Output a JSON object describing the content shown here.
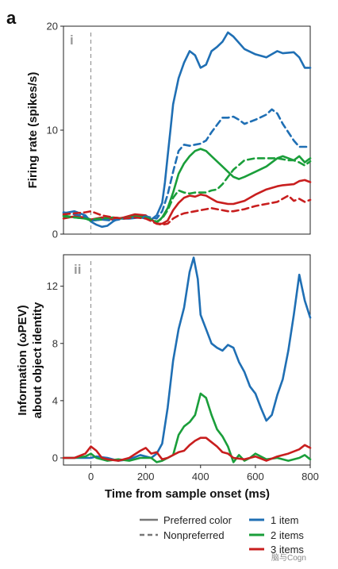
{
  "figure": {
    "letter": "a",
    "watermark": "脑与Cogn"
  },
  "colors": {
    "one_item": "#1f6fb4",
    "two_items": "#1a9e3a",
    "three_items": "#c81e1e",
    "grey": "#777777"
  },
  "legend": {
    "preferred": "Preferred color",
    "nonpreferred": "Nonpreferred",
    "one": "1 item",
    "two": "2 items",
    "three": "3 items"
  },
  "chart_data": [
    {
      "type": "line",
      "panel_label": "i",
      "ylabel": "Firing rate (spikes/s)",
      "xlim": [
        -100,
        800
      ],
      "ylim": [
        0,
        20
      ],
      "yticks": [
        0,
        10,
        20
      ],
      "event_marker_x": 0,
      "series": [
        {
          "name": "1 item",
          "line": "solid",
          "color": "one_item",
          "x": [
            -100,
            -60,
            -20,
            0,
            20,
            40,
            60,
            80,
            100,
            140,
            180,
            220,
            240,
            260,
            270,
            280,
            290,
            300,
            320,
            340,
            360,
            380,
            400,
            420,
            440,
            460,
            480,
            500,
            520,
            560,
            600,
            640,
            680,
            700,
            740,
            760,
            780,
            800
          ],
          "y": [
            2.0,
            2.2,
            1.8,
            1.2,
            0.9,
            0.7,
            0.8,
            1.2,
            1.5,
            1.5,
            1.6,
            1.4,
            1.8,
            3.0,
            5.0,
            7.5,
            10.0,
            12.5,
            15.0,
            16.5,
            17.6,
            17.2,
            16.0,
            16.3,
            17.6,
            18.0,
            18.5,
            19.4,
            19.0,
            17.8,
            17.3,
            17.0,
            17.6,
            17.4,
            17.5,
            17.0,
            16.0,
            16.0
          ]
        },
        {
          "name": "2 items",
          "line": "solid",
          "color": "two_items",
          "x": [
            -100,
            -60,
            -20,
            0,
            40,
            80,
            120,
            160,
            200,
            240,
            260,
            280,
            300,
            320,
            340,
            360,
            380,
            400,
            420,
            440,
            460,
            480,
            500,
            520,
            540,
            560,
            600,
            640,
            680,
            700,
            740,
            760,
            780,
            800
          ],
          "y": [
            1.8,
            1.6,
            1.5,
            1.3,
            1.4,
            1.6,
            1.5,
            1.8,
            1.7,
            1.1,
            1.6,
            2.5,
            4.0,
            5.8,
            6.8,
            7.5,
            8.0,
            8.2,
            8.0,
            7.5,
            7.0,
            6.5,
            6.0,
            5.5,
            5.3,
            5.5,
            6.0,
            6.5,
            7.3,
            7.5,
            7.1,
            7.5,
            6.9,
            7.3
          ]
        },
        {
          "name": "3 items",
          "line": "solid",
          "color": "three_items",
          "x": [
            -100,
            -60,
            -20,
            0,
            40,
            80,
            120,
            160,
            200,
            240,
            260,
            280,
            300,
            320,
            340,
            360,
            380,
            400,
            420,
            440,
            460,
            480,
            500,
            520,
            560,
            600,
            640,
            680,
            700,
            740,
            760,
            780,
            800
          ],
          "y": [
            1.5,
            1.7,
            1.6,
            1.4,
            1.6,
            1.4,
            1.6,
            1.9,
            1.8,
            1.0,
            1.0,
            1.3,
            2.3,
            3.0,
            3.5,
            3.7,
            3.6,
            3.8,
            3.7,
            3.4,
            3.1,
            3.0,
            2.9,
            2.9,
            3.2,
            3.8,
            4.3,
            4.6,
            4.7,
            4.8,
            5.1,
            5.2,
            5.0
          ]
        },
        {
          "name": "1 item",
          "line": "dashed",
          "color": "one_item",
          "x": [
            -100,
            -60,
            -20,
            0,
            40,
            80,
            120,
            160,
            200,
            240,
            260,
            280,
            300,
            320,
            340,
            360,
            380,
            400,
            420,
            440,
            460,
            480,
            500,
            520,
            540,
            560,
            600,
            640,
            660,
            680,
            700,
            740,
            760,
            780,
            800
          ],
          "y": [
            2.1,
            1.9,
            1.7,
            1.3,
            1.4,
            1.3,
            1.5,
            1.6,
            1.7,
            1.5,
            2.2,
            3.8,
            6.0,
            8.0,
            8.6,
            8.5,
            8.6,
            8.7,
            9.0,
            9.8,
            10.5,
            11.2,
            11.2,
            11.3,
            11.0,
            10.6,
            11.0,
            11.5,
            12.0,
            11.6,
            10.6,
            9.0,
            8.4,
            8.4,
            8.4
          ]
        },
        {
          "name": "2 items",
          "line": "dashed",
          "color": "two_items",
          "x": [
            -100,
            -60,
            -20,
            0,
            40,
            80,
            120,
            160,
            200,
            240,
            260,
            280,
            300,
            320,
            340,
            360,
            380,
            400,
            420,
            440,
            460,
            480,
            500,
            520,
            560,
            600,
            640,
            680,
            720,
            740,
            760,
            780,
            800
          ],
          "y": [
            1.7,
            1.6,
            1.5,
            1.4,
            1.5,
            1.6,
            1.5,
            1.7,
            1.6,
            1.2,
            1.5,
            2.3,
            3.5,
            4.2,
            4.0,
            3.9,
            4.0,
            4.0,
            4.0,
            4.2,
            4.3,
            4.8,
            5.5,
            6.2,
            7.1,
            7.3,
            7.3,
            7.3,
            7.1,
            7.1,
            6.9,
            6.6,
            7.0
          ]
        },
        {
          "name": "3 items",
          "line": "dashed",
          "color": "three_items",
          "x": [
            -100,
            -60,
            -20,
            0,
            40,
            80,
            120,
            160,
            200,
            240,
            260,
            280,
            300,
            320,
            340,
            360,
            380,
            400,
            420,
            440,
            460,
            480,
            500,
            520,
            560,
            600,
            640,
            680,
            720,
            740,
            760,
            780,
            800
          ],
          "y": [
            1.9,
            2.0,
            2.1,
            2.2,
            1.8,
            1.6,
            1.5,
            1.6,
            1.5,
            1.0,
            0.9,
            1.0,
            1.5,
            1.8,
            2.0,
            2.1,
            2.2,
            2.3,
            2.4,
            2.5,
            2.4,
            2.3,
            2.2,
            2.2,
            2.4,
            2.7,
            2.9,
            3.1,
            3.7,
            3.2,
            3.4,
            3.1,
            3.3
          ]
        }
      ]
    },
    {
      "type": "line",
      "panel_label": "ii",
      "ylabel_lines": [
        "Information (ωPEV)",
        "about object identity"
      ],
      "xlabel": "Time from sample onset (ms)",
      "xlim": [
        -100,
        800
      ],
      "ylim": [
        -0.5,
        14.2
      ],
      "xticks": [
        0,
        200,
        400,
        600,
        800
      ],
      "yticks": [
        0,
        4,
        8,
        12
      ],
      "event_marker_x": 0,
      "series": [
        {
          "name": "1 item",
          "line": "solid",
          "color": "one_item",
          "x": [
            -100,
            -60,
            -20,
            0,
            20,
            60,
            100,
            140,
            180,
            220,
            240,
            260,
            280,
            300,
            320,
            340,
            360,
            375,
            390,
            400,
            420,
            440,
            460,
            480,
            500,
            520,
            540,
            560,
            580,
            600,
            620,
            640,
            660,
            680,
            700,
            720,
            740,
            760,
            780,
            800
          ],
          "y": [
            0,
            0,
            0,
            0,
            0.1,
            0,
            -0.2,
            -0.1,
            0.2,
            0,
            0.3,
            1.0,
            3.5,
            6.8,
            9.0,
            10.5,
            13.0,
            14.0,
            12.5,
            10.0,
            9.0,
            8.0,
            7.7,
            7.5,
            7.9,
            7.7,
            6.7,
            6.0,
            5.0,
            4.5,
            3.5,
            2.6,
            3.0,
            4.4,
            5.5,
            7.5,
            10.0,
            12.8,
            11.0,
            9.8
          ]
        },
        {
          "name": "2 items",
          "line": "solid",
          "color": "two_items",
          "x": [
            -100,
            -60,
            -20,
            0,
            20,
            60,
            100,
            140,
            180,
            220,
            240,
            260,
            280,
            300,
            320,
            340,
            360,
            380,
            400,
            420,
            440,
            460,
            480,
            500,
            520,
            540,
            560,
            580,
            600,
            640,
            680,
            720,
            760,
            780,
            800
          ],
          "y": [
            0,
            0,
            0.1,
            0.3,
            0,
            -0.2,
            -0.1,
            -0.2,
            0,
            0,
            -0.3,
            -0.2,
            0,
            0.2,
            1.6,
            2.2,
            2.5,
            3.0,
            4.5,
            4.2,
            3.0,
            2.0,
            1.5,
            0.8,
            -0.3,
            0.2,
            -0.2,
            0,
            0.3,
            -0.1,
            0,
            -0.2,
            0,
            0.2,
            -0.1
          ]
        },
        {
          "name": "3 items",
          "line": "solid",
          "color": "three_items",
          "x": [
            -100,
            -60,
            -20,
            0,
            20,
            40,
            60,
            100,
            140,
            180,
            200,
            220,
            240,
            260,
            280,
            300,
            320,
            340,
            360,
            380,
            400,
            420,
            440,
            460,
            480,
            500,
            520,
            560,
            600,
            640,
            680,
            720,
            760,
            780,
            800
          ],
          "y": [
            0,
            0,
            0.3,
            0.8,
            0.5,
            0,
            -0.1,
            -0.2,
            0,
            0.5,
            0.7,
            0.3,
            0.4,
            -0.1,
            0,
            0.2,
            0.4,
            0.5,
            0.9,
            1.2,
            1.4,
            1.4,
            1.1,
            0.8,
            0.4,
            0.3,
            0,
            -0.1,
            0.1,
            -0.2,
            0.1,
            0.3,
            0.6,
            0.9,
            0.7
          ]
        }
      ]
    }
  ]
}
